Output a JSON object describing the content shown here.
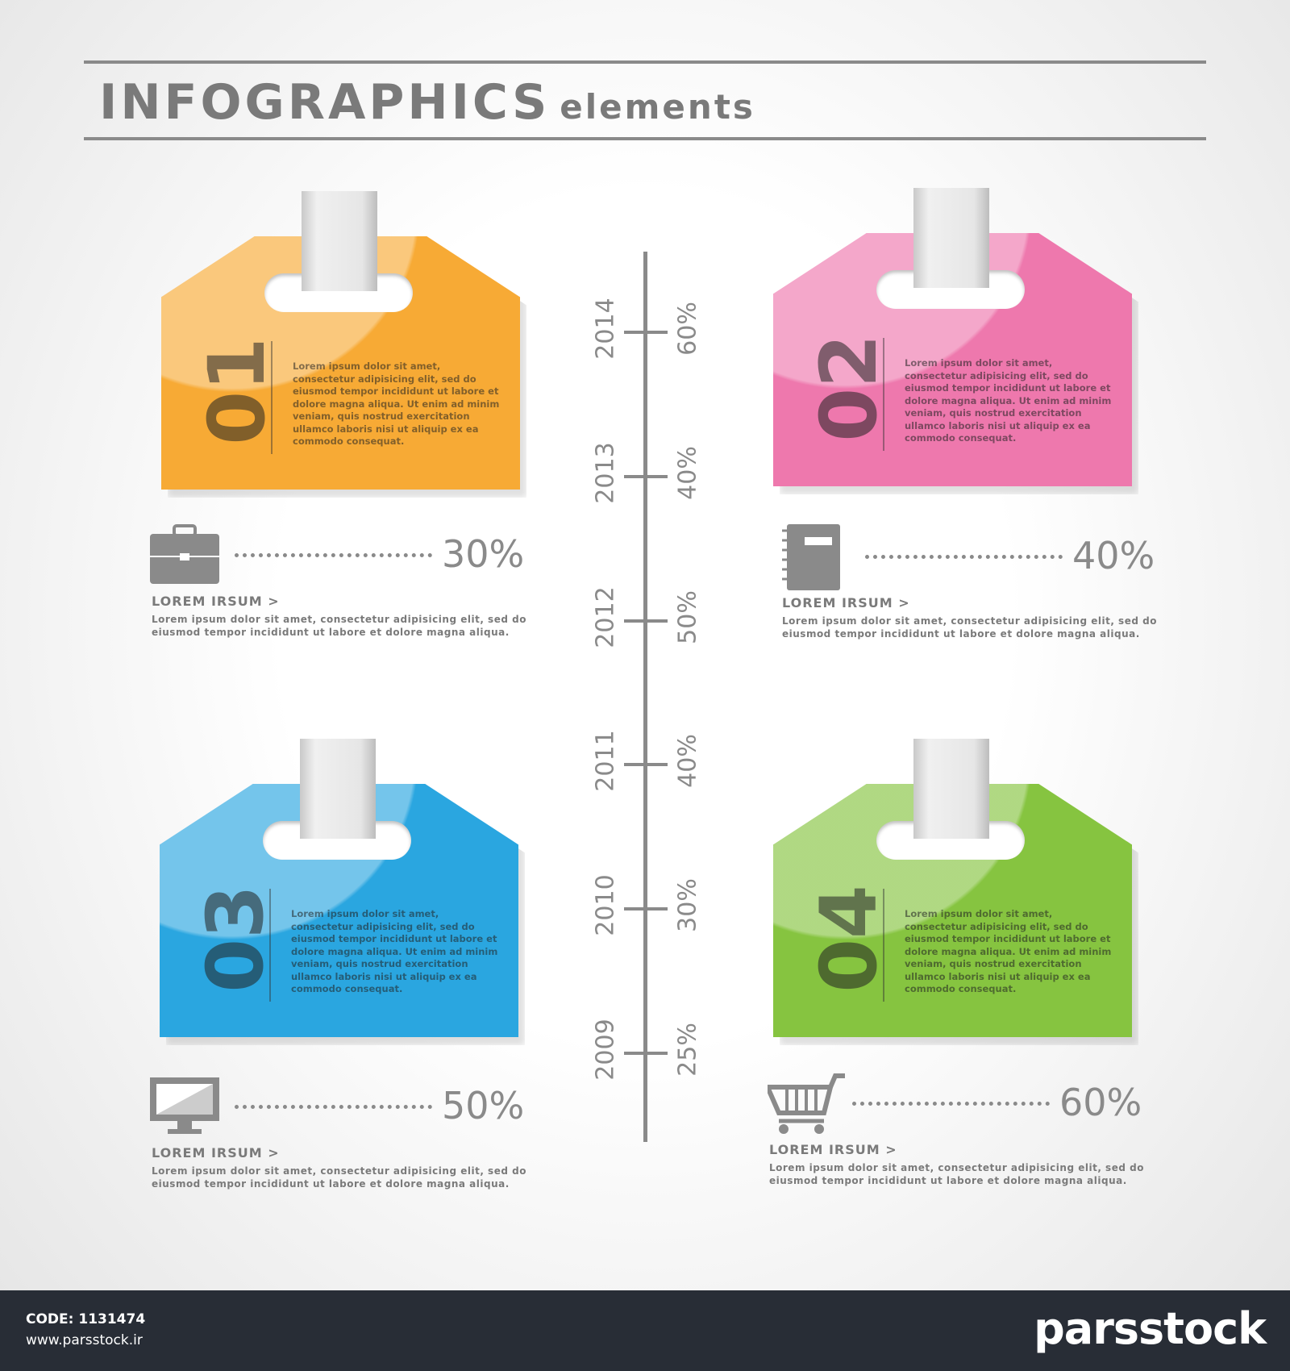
{
  "header": {
    "title": "INFOGRAPHICS",
    "subtitle": "elements"
  },
  "colors": {
    "orange": "#f7aa35",
    "pink": "#ee78ad",
    "blue": "#2aa6e0",
    "green": "#86c440",
    "gray": "#8a8a8a",
    "footer": "#282d36"
  },
  "tags": [
    {
      "number": "01",
      "text": "Lorem ipsum dolor sit amet, consectetur adipisicing elit, sed do eiusmod tempor incididunt ut labore et dolore magna aliqua. Ut enim ad minim veniam, quis nostrud exercitation ullamco laboris nisi ut aliquip ex ea commodo consequat."
    },
    {
      "number": "02",
      "text": "Lorem ipsum dolor sit amet, consectetur adipisicing elit, sed do eiusmod tempor incididunt ut labore et dolore magna aliqua. Ut enim ad minim veniam, quis nostrud exercitation ullamco laboris nisi ut aliquip ex ea commodo consequat."
    },
    {
      "number": "03",
      "text": "Lorem ipsum dolor sit amet, consectetur adipisicing elit, sed do eiusmod tempor incididunt ut labore et dolore magna aliqua. Ut enim ad minim veniam, quis nostrud exercitation ullamco laboris nisi ut aliquip ex ea commodo consequat."
    },
    {
      "number": "04",
      "text": "Lorem ipsum dolor sit amet, consectetur adipisicing elit, sed do eiusmod tempor incididunt ut labore et dolore magna aliqua. Ut enim ad minim veniam, quis nostrud exercitation ullamco laboris nisi ut aliquip ex ea commodo consequat."
    }
  ],
  "stats": [
    {
      "icon": "briefcase-icon",
      "percent": "30%",
      "heading": "LOREM IRSUM >",
      "desc": "Lorem ipsum dolor sit amet, consectetur adipisicing elit, sed do eiusmod tempor incididunt ut labore et dolore magna aliqua."
    },
    {
      "icon": "notebook-icon",
      "percent": "40%",
      "heading": "LOREM IRSUM >",
      "desc": "Lorem ipsum dolor sit amet, consectetur adipisicing elit, sed do eiusmod tempor incididunt ut labore et dolore magna aliqua."
    },
    {
      "icon": "monitor-icon",
      "percent": "50%",
      "heading": "LOREM IRSUM >",
      "desc": "Lorem ipsum dolor sit amet, consectetur adipisicing elit, sed do eiusmod tempor incididunt ut labore et dolore magna aliqua."
    },
    {
      "icon": "cart-icon",
      "percent": "60%",
      "heading": "LOREM IRSUM >",
      "desc": "Lorem ipsum dolor sit amet, consectetur adipisicing elit, sed do eiusmod tempor incididunt ut labore et dolore magna aliqua."
    }
  ],
  "timeline": [
    {
      "year": "2014",
      "value": "60%"
    },
    {
      "year": "2013",
      "value": "40%"
    },
    {
      "year": "2012",
      "value": "50%"
    },
    {
      "year": "2011",
      "value": "40%"
    },
    {
      "year": "2010",
      "value": "30%"
    },
    {
      "year": "2009",
      "value": "25%"
    }
  ],
  "footer": {
    "code": "CODE: 1131474",
    "url": "www.parsstock.ir",
    "logo": "parsstock"
  }
}
